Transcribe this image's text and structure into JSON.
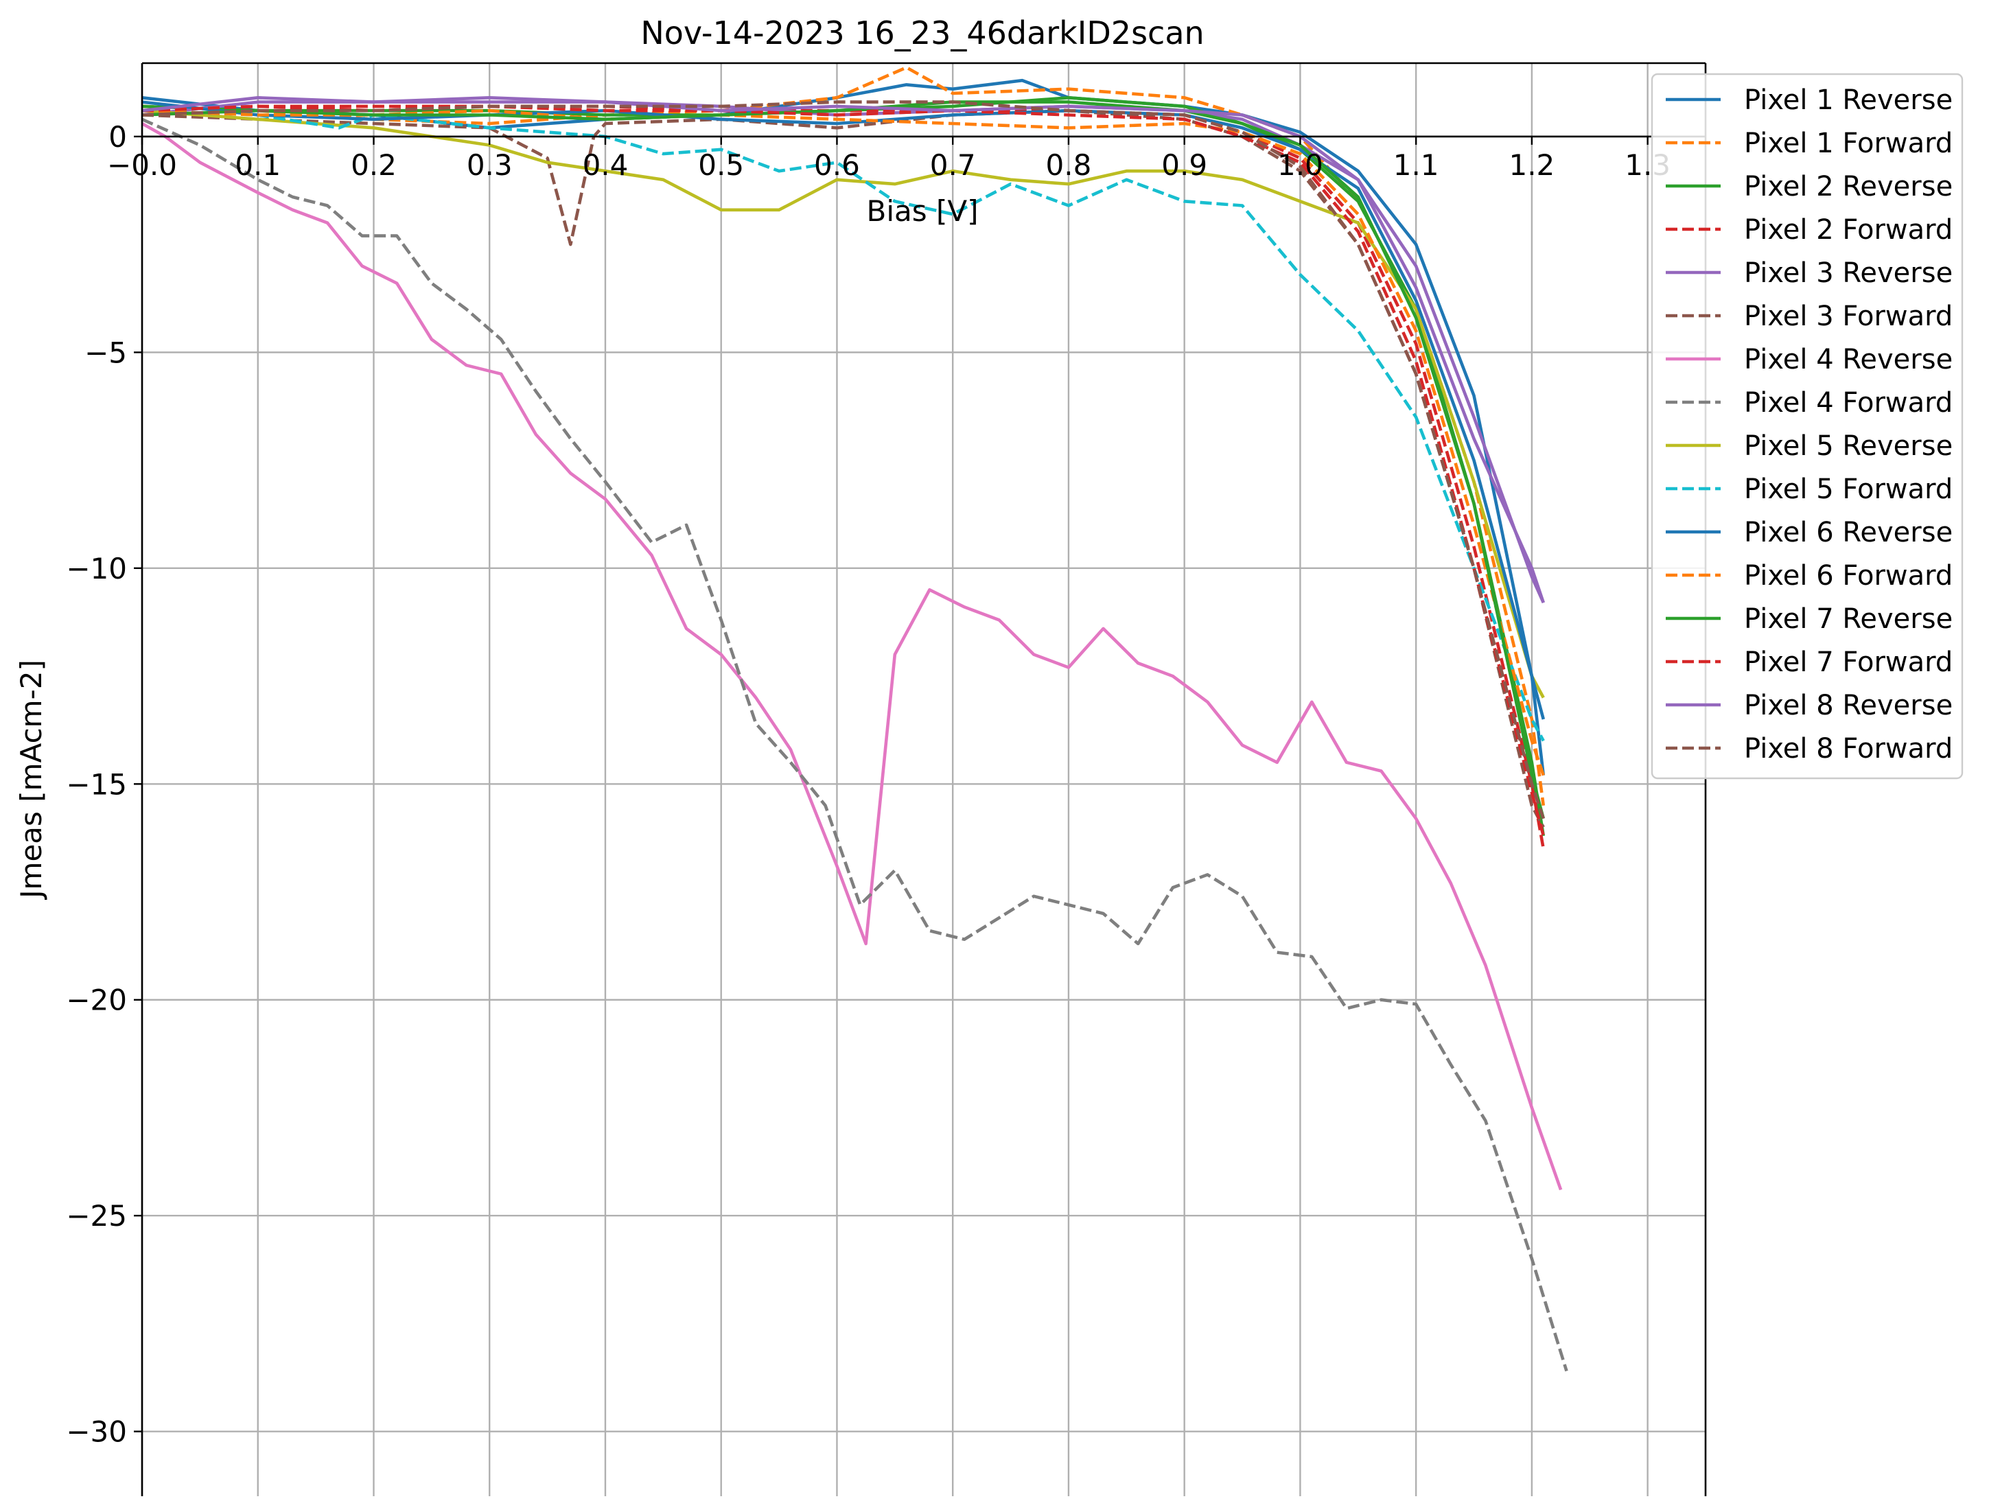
{
  "chart_data": {
    "type": "line",
    "title": "Nov-14-2023 16_23_46darkID2scan",
    "xlabel": "Bias [V]",
    "ylabel": "Jmeas [mAcm-2]",
    "xlim": [
      0.0,
      1.35
    ],
    "ylim": [
      -31.5,
      1.7
    ],
    "xticks": [
      0.0,
      0.1,
      0.2,
      0.3,
      0.4,
      0.5,
      0.6,
      0.7,
      0.8,
      0.9,
      1.0,
      1.1,
      1.2,
      1.3
    ],
    "xtick_labels": [
      "−0.0",
      "0.1",
      "0.2",
      "0.3",
      "0.4",
      "0.5",
      "0.6",
      "0.7",
      "0.8",
      "0.9",
      "1.0",
      "1.1",
      "1.2",
      "1.3"
    ],
    "yticks": [
      0,
      -5,
      -10,
      -15,
      -20,
      -25,
      -30
    ],
    "ytick_labels": [
      "0",
      "−5",
      "−10",
      "−15",
      "−20",
      "−25",
      "−30"
    ],
    "grid": true,
    "legend_position": "top-right, outside plot",
    "series": [
      {
        "name": "Pixel 1 Reverse",
        "color": "#1f77b4",
        "dash": "solid",
        "x": [
          0.0,
          0.1,
          0.2,
          0.3,
          0.4,
          0.5,
          0.6,
          0.66,
          0.7,
          0.76,
          0.8,
          0.9,
          0.95,
          1.0,
          1.05,
          1.1,
          1.15,
          1.2,
          1.21
        ],
        "y": [
          0.9,
          0.6,
          0.5,
          0.2,
          0.4,
          0.5,
          0.9,
          1.2,
          1.1,
          1.3,
          0.9,
          0.7,
          0.5,
          0.1,
          -0.8,
          -2.5,
          -6.0,
          -12.5,
          -14.8
        ]
      },
      {
        "name": "Pixel 1 Forward",
        "color": "#ff7f0e",
        "dash": "dashed",
        "x": [
          0.0,
          0.1,
          0.2,
          0.3,
          0.4,
          0.5,
          0.6,
          0.66,
          0.7,
          0.8,
          0.9,
          0.95,
          1.0,
          1.05,
          1.1,
          1.15,
          1.2,
          1.21
        ],
        "y": [
          0.7,
          0.6,
          0.4,
          0.3,
          0.5,
          0.6,
          0.9,
          1.6,
          1.0,
          1.1,
          0.9,
          0.5,
          0.0,
          -1.5,
          -4.0,
          -8.0,
          -13.5,
          -15.5
        ]
      },
      {
        "name": "Pixel 2 Reverse",
        "color": "#2ca02c",
        "dash": "solid",
        "x": [
          0.0,
          0.1,
          0.2,
          0.3,
          0.4,
          0.5,
          0.6,
          0.7,
          0.8,
          0.9,
          0.95,
          1.0,
          1.05,
          1.1,
          1.15,
          1.2,
          1.21
        ],
        "y": [
          0.7,
          0.6,
          0.6,
          0.6,
          0.5,
          0.5,
          0.6,
          0.7,
          0.9,
          0.7,
          0.3,
          -0.3,
          -1.5,
          -4.0,
          -8.5,
          -14.5,
          -16.2
        ]
      },
      {
        "name": "Pixel 2 Forward",
        "color": "#d62728",
        "dash": "dashed",
        "x": [
          0.0,
          0.1,
          0.2,
          0.3,
          0.4,
          0.5,
          0.6,
          0.7,
          0.8,
          0.9,
          0.95,
          1.0,
          1.05,
          1.1,
          1.15,
          1.2,
          1.21
        ],
        "y": [
          0.6,
          0.7,
          0.7,
          0.7,
          0.7,
          0.6,
          0.6,
          0.6,
          0.6,
          0.5,
          0.1,
          -0.5,
          -2.0,
          -4.8,
          -9.5,
          -15.0,
          -16.5
        ]
      },
      {
        "name": "Pixel 3 Reverse",
        "color": "#9467bd",
        "dash": "solid",
        "x": [
          0.0,
          0.1,
          0.2,
          0.3,
          0.4,
          0.5,
          0.6,
          0.7,
          0.8,
          0.9,
          0.95,
          1.0,
          1.05,
          1.1,
          1.15,
          1.2,
          1.21
        ],
        "y": [
          0.5,
          0.8,
          0.8,
          0.8,
          0.8,
          0.7,
          0.5,
          0.6,
          0.7,
          0.6,
          0.4,
          -0.2,
          -1.0,
          -3.5,
          -7.0,
          -10.0,
          -10.8
        ]
      },
      {
        "name": "Pixel 3 Forward",
        "color": "#8c564b",
        "dash": "dashed",
        "x": [
          0.0,
          0.1,
          0.2,
          0.3,
          0.35,
          0.37,
          0.39,
          0.4,
          0.5,
          0.6,
          0.7,
          0.8,
          0.9,
          0.95,
          1.0,
          1.05,
          1.1,
          1.15,
          1.2,
          1.21
        ],
        "y": [
          0.5,
          0.4,
          0.3,
          0.2,
          -0.5,
          -2.5,
          0.0,
          0.3,
          0.4,
          0.2,
          0.5,
          0.6,
          0.4,
          0.0,
          -0.8,
          -2.5,
          -5.5,
          -10.0,
          -15.5,
          -16.0
        ]
      },
      {
        "name": "Pixel 4 Reverse",
        "color": "#e377c2",
        "dash": "solid",
        "x": [
          0.0,
          0.02,
          0.05,
          0.1,
          0.13,
          0.16,
          0.19,
          0.22,
          0.25,
          0.28,
          0.31,
          0.34,
          0.37,
          0.4,
          0.44,
          0.47,
          0.5,
          0.53,
          0.56,
          0.6,
          0.625,
          0.65,
          0.68,
          0.71,
          0.74,
          0.77,
          0.8,
          0.83,
          0.86,
          0.89,
          0.92,
          0.95,
          0.98,
          1.01,
          1.04,
          1.07,
          1.1,
          1.13,
          1.16,
          1.2,
          1.225
        ],
        "y": [
          0.3,
          0.0,
          -0.6,
          -1.3,
          -1.7,
          -2.0,
          -3.0,
          -3.4,
          -4.7,
          -5.3,
          -5.5,
          -6.9,
          -7.8,
          -8.4,
          -9.7,
          -11.4,
          -12.0,
          -13.0,
          -14.2,
          -16.9,
          -18.7,
          -12.0,
          -10.5,
          -10.9,
          -11.2,
          -12.0,
          -12.3,
          -11.4,
          -12.2,
          -12.5,
          -13.1,
          -14.1,
          -14.5,
          -13.1,
          -14.5,
          -14.7,
          -15.8,
          -17.3,
          -19.2,
          -22.5,
          -24.4
        ]
      },
      {
        "name": "Pixel 4 Forward",
        "color": "#7f7f7f",
        "dash": "dashed",
        "x": [
          0.0,
          0.05,
          0.1,
          0.13,
          0.16,
          0.19,
          0.22,
          0.25,
          0.28,
          0.31,
          0.34,
          0.37,
          0.4,
          0.44,
          0.47,
          0.5,
          0.53,
          0.56,
          0.59,
          0.62,
          0.65,
          0.68,
          0.71,
          0.74,
          0.77,
          0.8,
          0.83,
          0.86,
          0.89,
          0.92,
          0.95,
          0.98,
          1.01,
          1.04,
          1.07,
          1.1,
          1.13,
          1.16,
          1.2,
          1.23
        ],
        "y": [
          0.4,
          -0.2,
          -1.0,
          -1.4,
          -1.6,
          -2.3,
          -2.3,
          -3.4,
          -4.0,
          -4.7,
          -5.9,
          -7.0,
          -8.0,
          -9.4,
          -9.0,
          -11.2,
          -13.6,
          -14.5,
          -15.5,
          -17.8,
          -17.0,
          -18.4,
          -18.6,
          -18.1,
          -17.6,
          -17.8,
          -18.0,
          -18.7,
          -17.4,
          -17.1,
          -17.6,
          -18.9,
          -19.0,
          -20.2,
          -20.0,
          -20.1,
          -21.5,
          -22.8,
          -26.0,
          -28.6
        ]
      },
      {
        "name": "Pixel 5 Reverse",
        "color": "#bcbd22",
        "dash": "solid",
        "x": [
          0.0,
          0.1,
          0.2,
          0.3,
          0.35,
          0.4,
          0.45,
          0.5,
          0.55,
          0.6,
          0.65,
          0.7,
          0.75,
          0.8,
          0.85,
          0.9,
          0.95,
          1.0,
          1.05,
          1.1,
          1.15,
          1.2,
          1.21
        ],
        "y": [
          0.6,
          0.4,
          0.2,
          -0.2,
          -0.6,
          -0.8,
          -1.0,
          -1.7,
          -1.7,
          -1.0,
          -1.1,
          -0.8,
          -1.0,
          -1.1,
          -0.8,
          -0.8,
          -1.0,
          -1.5,
          -2.0,
          -4.0,
          -8.0,
          -12.5,
          -13.0
        ]
      },
      {
        "name": "Pixel 5 Forward",
        "color": "#17becf",
        "dash": "dashed",
        "x": [
          0.0,
          0.1,
          0.17,
          0.2,
          0.3,
          0.4,
          0.45,
          0.5,
          0.55,
          0.6,
          0.65,
          0.7,
          0.75,
          0.8,
          0.85,
          0.9,
          0.95,
          1.0,
          1.05,
          1.1,
          1.15,
          1.2,
          1.21
        ],
        "y": [
          0.6,
          0.5,
          0.2,
          0.5,
          0.2,
          0.0,
          -0.4,
          -0.3,
          -0.8,
          -0.6,
          -1.5,
          -1.8,
          -1.1,
          -1.6,
          -1.0,
          -1.5,
          -1.6,
          -3.2,
          -4.5,
          -6.5,
          -10.0,
          -13.5,
          -14.0
        ]
      },
      {
        "name": "Pixel 6 Reverse",
        "color": "#1f77b4",
        "dash": "solid",
        "x": [
          0.0,
          0.1,
          0.2,
          0.3,
          0.4,
          0.5,
          0.6,
          0.7,
          0.8,
          0.9,
          0.95,
          1.0,
          1.05,
          1.1,
          1.15,
          1.2,
          1.21
        ],
        "y": [
          0.8,
          0.5,
          0.4,
          0.5,
          0.6,
          0.4,
          0.3,
          0.5,
          0.6,
          0.5,
          0.2,
          -0.3,
          -1.2,
          -3.8,
          -7.5,
          -12.5,
          -13.5
        ]
      },
      {
        "name": "Pixel 6 Forward",
        "color": "#ff7f0e",
        "dash": "dashed",
        "x": [
          0.0,
          0.1,
          0.2,
          0.3,
          0.4,
          0.5,
          0.6,
          0.7,
          0.8,
          0.9,
          0.95,
          1.0,
          1.05,
          1.1,
          1.15,
          1.2,
          1.21
        ],
        "y": [
          0.6,
          0.5,
          0.5,
          0.6,
          0.4,
          0.5,
          0.4,
          0.3,
          0.2,
          0.3,
          0.1,
          -0.4,
          -1.8,
          -4.5,
          -9.0,
          -14.0,
          -14.8
        ]
      },
      {
        "name": "Pixel 7 Reverse",
        "color": "#2ca02c",
        "dash": "solid",
        "x": [
          0.0,
          0.1,
          0.2,
          0.3,
          0.4,
          0.5,
          0.6,
          0.7,
          0.8,
          0.9,
          0.95,
          1.0,
          1.05,
          1.1,
          1.15,
          1.2,
          1.21
        ],
        "y": [
          0.5,
          0.6,
          0.5,
          0.5,
          0.4,
          0.5,
          0.6,
          0.8,
          0.8,
          0.6,
          0.3,
          -0.2,
          -1.4,
          -4.2,
          -8.5,
          -14.8,
          -15.8
        ]
      },
      {
        "name": "Pixel 7 Forward",
        "color": "#d62728",
        "dash": "dashed",
        "x": [
          0.0,
          0.1,
          0.2,
          0.3,
          0.4,
          0.5,
          0.6,
          0.7,
          0.8,
          0.9,
          0.95,
          1.0,
          1.05,
          1.1,
          1.15,
          1.2,
          1.21
        ],
        "y": [
          0.6,
          0.7,
          0.6,
          0.7,
          0.6,
          0.6,
          0.5,
          0.6,
          0.5,
          0.4,
          0.0,
          -0.6,
          -2.2,
          -5.2,
          -10.0,
          -15.2,
          -16.2
        ]
      },
      {
        "name": "Pixel 8 Reverse",
        "color": "#9467bd",
        "dash": "solid",
        "x": [
          0.0,
          0.1,
          0.2,
          0.3,
          0.4,
          0.5,
          0.6,
          0.7,
          0.8,
          0.9,
          0.95,
          1.0,
          1.05,
          1.1,
          1.15,
          1.2,
          1.21
        ],
        "y": [
          0.6,
          0.9,
          0.8,
          0.9,
          0.8,
          0.6,
          0.7,
          0.6,
          0.7,
          0.6,
          0.5,
          0.0,
          -1.0,
          -3.0,
          -6.5,
          -10.2,
          -10.8
        ]
      },
      {
        "name": "Pixel 8 Forward",
        "color": "#8c564b",
        "dash": "dashed",
        "x": [
          0.0,
          0.1,
          0.2,
          0.3,
          0.4,
          0.5,
          0.6,
          0.7,
          0.8,
          0.9,
          0.95,
          1.0,
          1.05,
          1.1,
          1.15,
          1.2,
          1.21
        ],
        "y": [
          0.5,
          0.6,
          0.6,
          0.7,
          0.7,
          0.7,
          0.8,
          0.8,
          0.6,
          0.5,
          0.1,
          -0.7,
          -2.5,
          -5.5,
          -10.0,
          -15.0,
          -15.8
        ]
      }
    ]
  }
}
